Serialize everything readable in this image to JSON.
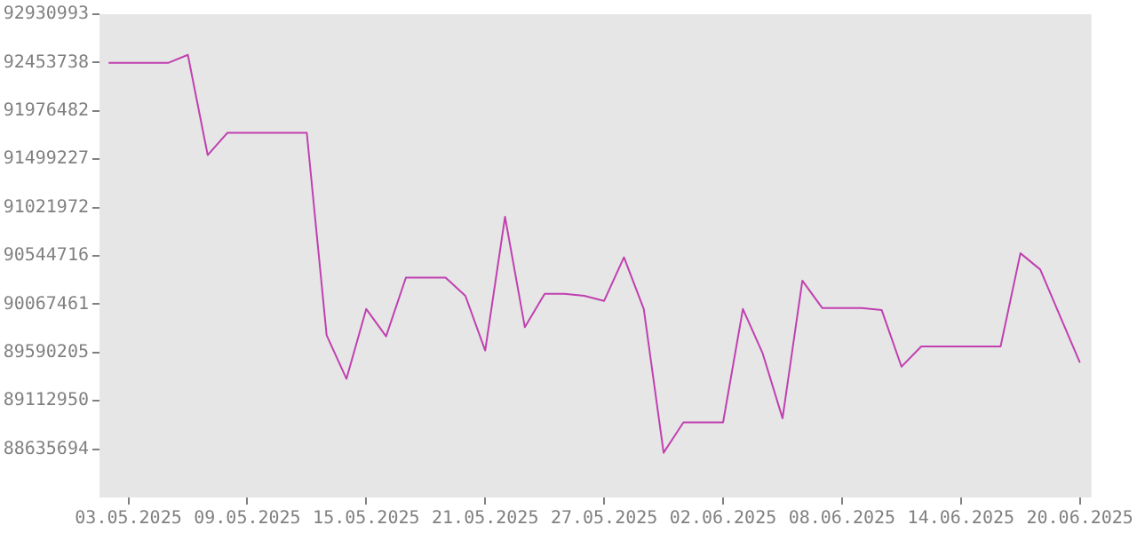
{
  "chart_data": {
    "type": "line",
    "x": [
      "2025-05-02",
      "2025-05-03",
      "2025-05-04",
      "2025-05-05",
      "2025-05-06",
      "2025-05-07",
      "2025-05-08",
      "2025-05-09",
      "2025-05-10",
      "2025-05-11",
      "2025-05-12",
      "2025-05-13",
      "2025-05-14",
      "2025-05-15",
      "2025-05-16",
      "2025-05-17",
      "2025-05-18",
      "2025-05-19",
      "2025-05-20",
      "2025-05-21",
      "2025-05-22",
      "2025-05-23",
      "2025-05-24",
      "2025-05-25",
      "2025-05-26",
      "2025-05-27",
      "2025-05-28",
      "2025-05-29",
      "2025-05-30",
      "2025-05-31",
      "2025-06-01",
      "2025-06-02",
      "2025-06-03",
      "2025-06-04",
      "2025-06-05",
      "2025-06-06",
      "2025-06-07",
      "2025-06-08",
      "2025-06-09",
      "2025-06-10",
      "2025-06-11",
      "2025-06-12",
      "2025-06-13",
      "2025-06-14",
      "2025-06-15",
      "2025-06-16",
      "2025-06-17",
      "2025-06-18",
      "2025-06-19",
      "2025-06-20"
    ],
    "series": [
      {
        "color": "#c040b0",
        "values": [
          92450000,
          92450000,
          92450000,
          92450000,
          92530000,
          91540000,
          91760000,
          91760000,
          91760000,
          91760000,
          91760000,
          89760000,
          89330000,
          90020000,
          89750000,
          90330000,
          90330000,
          90330000,
          90150000,
          89610000,
          90930000,
          89840000,
          90170000,
          90170000,
          90150000,
          90100000,
          90530000,
          90020000,
          88600000,
          88900000,
          88900000,
          88900000,
          90020000,
          89580000,
          88940000,
          90300000,
          90030000,
          90030000,
          90030000,
          90010000,
          89450000,
          89650000,
          89650000,
          89650000,
          89650000,
          89650000,
          90570000,
          90410000,
          89950000,
          89490000
        ]
      }
    ],
    "xlim": [
      "2025-05-01T13:00",
      "2025-06-20T14:00"
    ],
    "xticks": [
      {
        "value": "2025-05-03",
        "label": "03.05.2025"
      },
      {
        "value": "2025-05-09",
        "label": "09.05.2025"
      },
      {
        "value": "2025-05-15",
        "label": "15.05.2025"
      },
      {
        "value": "2025-05-21",
        "label": "21.05.2025"
      },
      {
        "value": "2025-05-27",
        "label": "27.05.2025"
      },
      {
        "value": "2025-06-02",
        "label": "02.06.2025"
      },
      {
        "value": "2025-06-08",
        "label": "08.06.2025"
      },
      {
        "value": "2025-06-14",
        "label": "14.06.2025"
      },
      {
        "value": "2025-06-20",
        "label": "20.06.2025"
      }
    ],
    "ylim": [
      88158439,
      92930993
    ],
    "yticks": [
      88635694,
      89112950,
      89590205,
      90067461,
      90544716,
      91021972,
      91499227,
      91976482,
      92453738,
      92930993
    ],
    "grid": false,
    "legend": false,
    "marker": "none",
    "line_style": "solid"
  }
}
